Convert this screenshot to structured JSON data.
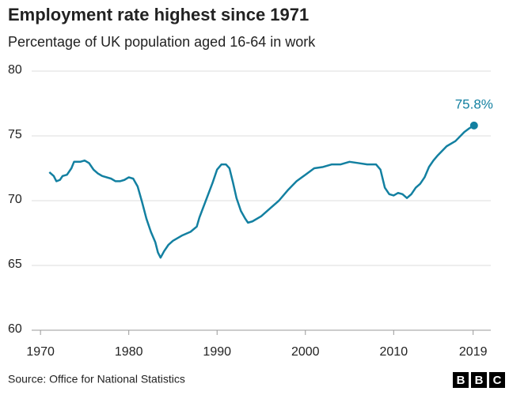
{
  "chart_data": {
    "type": "line",
    "title": "Employment rate highest since 1971",
    "subtitle": "Percentage of UK population aged 16-64 in work",
    "source": "Source: Office for National Statistics",
    "logo": [
      "B",
      "B",
      "C"
    ],
    "xlim": [
      1969,
      2021
    ],
    "xticks": [
      1970,
      1980,
      1990,
      2000,
      2010,
      2019
    ],
    "ylim": [
      60,
      80
    ],
    "yticks": [
      60,
      65,
      70,
      75,
      80
    ],
    "grid": true,
    "series": [
      {
        "color": "#1380a1",
        "x": [
          1971.0,
          1971.5,
          1971.8,
          1972.2,
          1972.5,
          1973.0,
          1973.5,
          1973.8,
          1974.5,
          1975.0,
          1975.5,
          1976.0,
          1976.5,
          1977.0,
          1978.0,
          1978.5,
          1979.0,
          1979.5,
          1980.0,
          1980.5,
          1981.0,
          1981.5,
          1982.0,
          1982.5,
          1983.0,
          1983.3,
          1983.6,
          1984.0,
          1984.5,
          1985.0,
          1986.0,
          1987.0,
          1987.7,
          1988.0,
          1988.5,
          1989.0,
          1989.5,
          1990.0,
          1990.5,
          1991.0,
          1991.4,
          1991.8,
          1992.2,
          1992.7,
          1993.2,
          1993.5,
          1994.0,
          1995.0,
          1996.0,
          1997.0,
          1998.0,
          1999.0,
          2000.0,
          2001.0,
          2002.0,
          2003.0,
          2004.0,
          2005.0,
          2006.0,
          2007.0,
          2008.0,
          2008.5,
          2009.0,
          2009.5,
          2010.0,
          2010.5,
          2011.0,
          2011.5,
          2012.0,
          2012.5,
          2013.0,
          2013.5,
          2014.0,
          2014.5,
          2015.0,
          2016.0,
          2017.0,
          2018.0,
          2018.6,
          2019.1
        ],
        "values": [
          72.2,
          71.9,
          71.5,
          71.6,
          71.9,
          72.0,
          72.5,
          73.0,
          73.0,
          73.1,
          72.9,
          72.4,
          72.1,
          71.9,
          71.7,
          71.5,
          71.5,
          71.6,
          71.8,
          71.7,
          71.1,
          69.9,
          68.6,
          67.6,
          66.8,
          66.0,
          65.6,
          66.1,
          66.6,
          66.9,
          67.3,
          67.6,
          68.0,
          68.7,
          69.6,
          70.5,
          71.4,
          72.4,
          72.8,
          72.8,
          72.5,
          71.4,
          70.2,
          69.2,
          68.6,
          68.3,
          68.4,
          68.8,
          69.4,
          70.0,
          70.8,
          71.5,
          72.0,
          72.5,
          72.6,
          72.8,
          72.8,
          73.0,
          72.9,
          72.8,
          72.8,
          72.4,
          71.0,
          70.5,
          70.4,
          70.6,
          70.5,
          70.2,
          70.5,
          71.0,
          71.3,
          71.8,
          72.6,
          73.1,
          73.5,
          74.2,
          74.6,
          75.3,
          75.6,
          75.8
        ]
      }
    ],
    "annotations": [
      {
        "text": "75.8%",
        "x": 2019.1,
        "y": 75.8
      }
    ]
  }
}
